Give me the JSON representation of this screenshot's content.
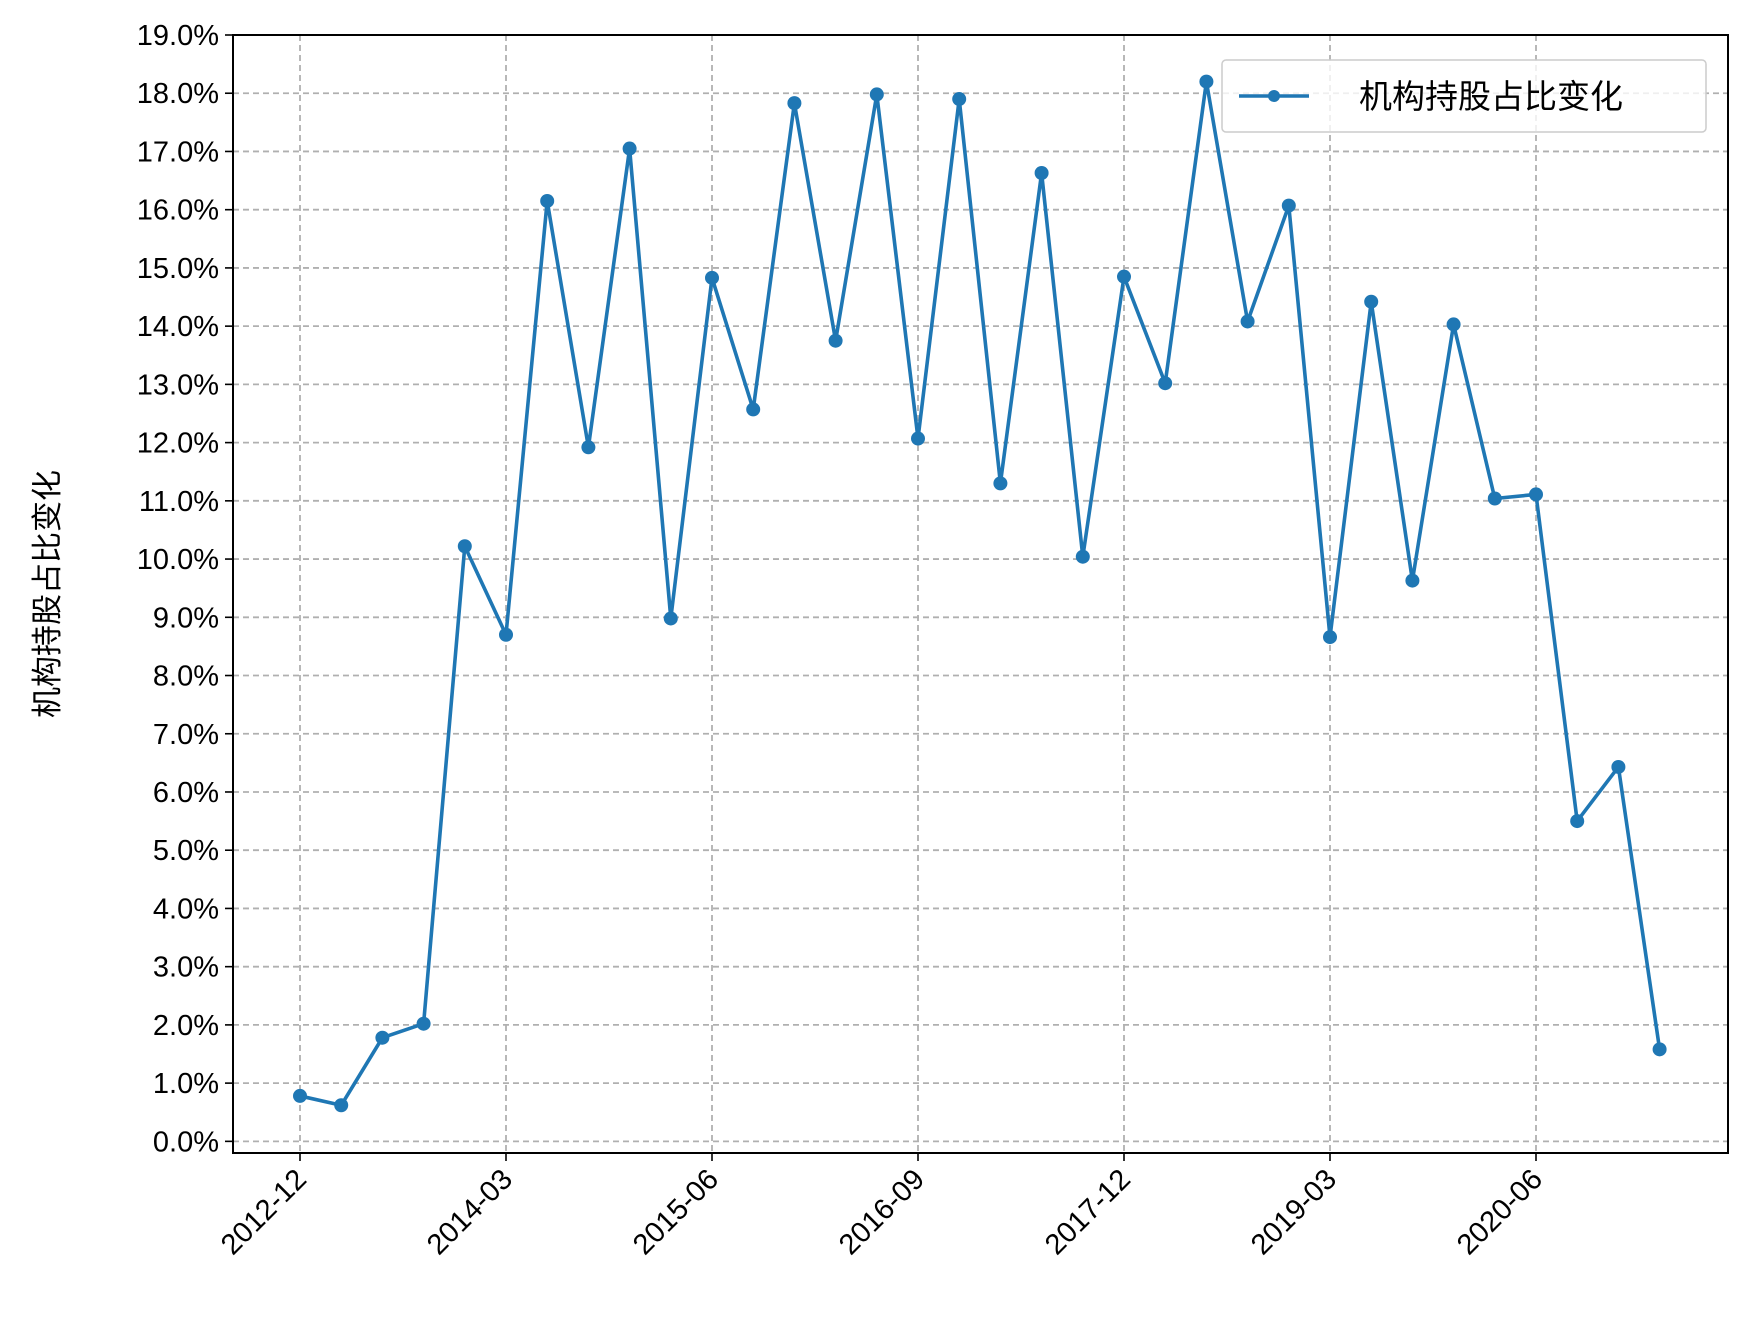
{
  "chart_data": {
    "type": "line",
    "ylabel": "机构持股占比变化",
    "xlabel": "",
    "title": "",
    "y_unit": "%",
    "ylim": [
      -0.2,
      19.0
    ],
    "y_ticks": [
      0.0,
      1.0,
      2.0,
      3.0,
      4.0,
      5.0,
      6.0,
      7.0,
      8.0,
      9.0,
      10.0,
      11.0,
      12.0,
      13.0,
      14.0,
      15.0,
      16.0,
      17.0,
      18.0,
      19.0
    ],
    "y_tick_labels": [
      "0.0%",
      "1.0%",
      "2.0%",
      "3.0%",
      "4.0%",
      "5.0%",
      "6.0%",
      "7.0%",
      "8.0%",
      "9.0%",
      "10.0%",
      "11.0%",
      "12.0%",
      "13.0%",
      "14.0%",
      "15.0%",
      "16.0%",
      "17.0%",
      "18.0%",
      "19.0%"
    ],
    "x": [
      "2012-12",
      "2013-03",
      "2013-06",
      "2013-09",
      "2013-12",
      "2014-03",
      "2014-06",
      "2014-09",
      "2014-12",
      "2015-03",
      "2015-06",
      "2015-09",
      "2015-12",
      "2016-03",
      "2016-06",
      "2016-09",
      "2016-12",
      "2017-03",
      "2017-06",
      "2017-09",
      "2017-12",
      "2018-03",
      "2018-06",
      "2018-09",
      "2018-12",
      "2019-03",
      "2019-06",
      "2019-09",
      "2019-12",
      "2020-03",
      "2020-06",
      "2020-09",
      "2020-12",
      "2021-03"
    ],
    "x_tick_labels": [
      "2012-12",
      "2014-03",
      "2015-06",
      "2016-09",
      "2017-12",
      "2019-03",
      "2020-06"
    ],
    "grid": true,
    "legend_position": "top-right",
    "series": [
      {
        "name": "机构持股占比变化",
        "color": "#1f77b4",
        "marker": "circle",
        "values": [
          0.78,
          0.62,
          1.78,
          2.02,
          10.22,
          8.7,
          16.15,
          11.92,
          17.05,
          8.98,
          14.83,
          12.57,
          17.83,
          13.75,
          17.98,
          12.07,
          17.9,
          11.3,
          16.63,
          10.04,
          14.85,
          13.02,
          18.2,
          14.08,
          16.07,
          8.66,
          14.42,
          9.63,
          14.03,
          11.04,
          11.11,
          5.5,
          6.43,
          1.58
        ]
      }
    ]
  }
}
